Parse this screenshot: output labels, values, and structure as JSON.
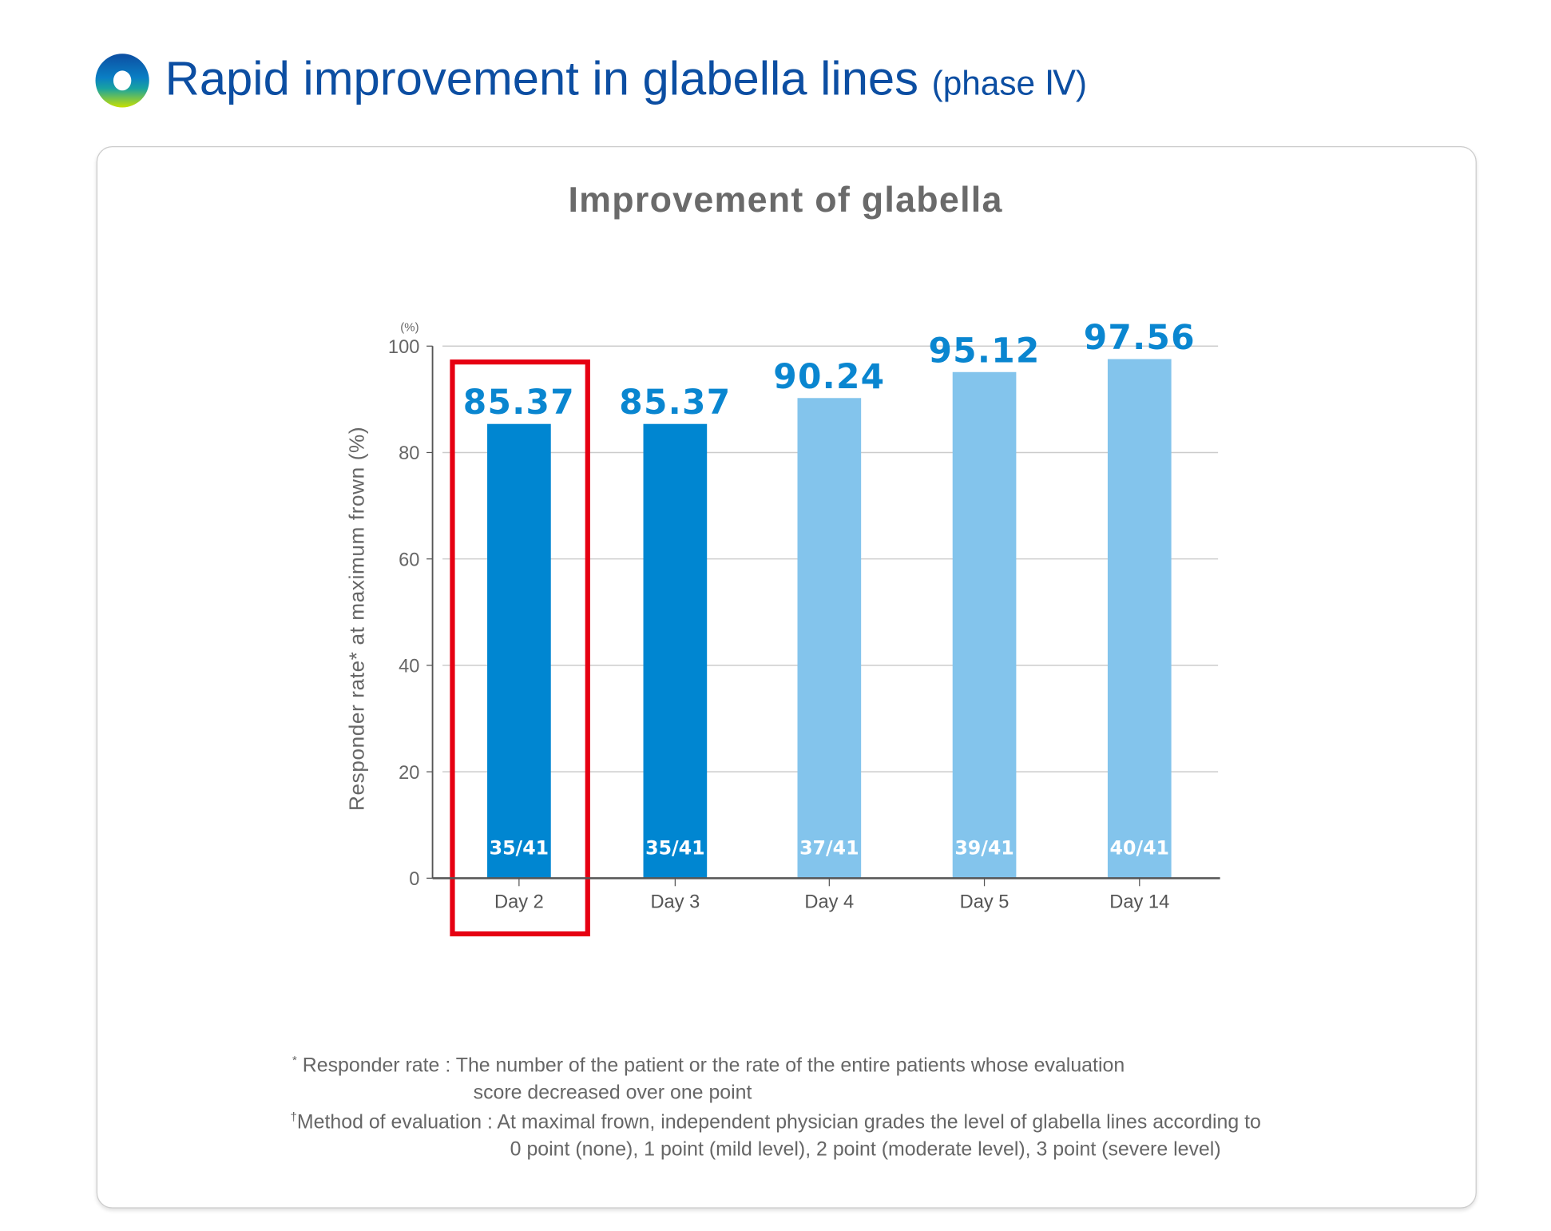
{
  "header": {
    "title": "Rapid improvement in glabella lines",
    "subtitle": "(phase Ⅳ)"
  },
  "colors": {
    "highlight_bar": "#0086d1",
    "bar": "#83c4ec",
    "value_label": "#0a86d0",
    "highlight_box": "#e60012",
    "title": "#0c4ea2"
  },
  "chart_data": {
    "type": "bar",
    "title": "Improvement of glabella",
    "ylabel": "Responder rate* at maximum frown (%)",
    "yunit": "(%)",
    "ylim": [
      0,
      100
    ],
    "yticks": [
      "0",
      "20",
      "40",
      "60",
      "80",
      "100"
    ],
    "grid": true,
    "categories": [
      "Day 2",
      "Day 3",
      "Day 4",
      "Day 5",
      "Day 14"
    ],
    "values": [
      85.37,
      85.37,
      90.24,
      95.12,
      97.56
    ],
    "value_labels": [
      "85.37",
      "85.37",
      "90.24",
      "95.12",
      "97.56"
    ],
    "counts": [
      "35/41",
      "35/41",
      "37/41",
      "39/41",
      "40/41"
    ],
    "highlighted": [
      true,
      true,
      false,
      false,
      false
    ],
    "boxed_category": "Day 2"
  },
  "footnotes": [
    {
      "mark": "*",
      "label": "Responder rate :",
      "line1": "The number of the patient or the rate of the entire patients whose evaluation",
      "line2": "score decreased over one point"
    },
    {
      "mark": "†",
      "label": "Method of evaluation :",
      "line1": "At maximal frown, independent physician grades the level of glabella lines according to",
      "line2": "0 point (none), 1 point (mild level), 2 point (moderate level), 3 point (severe level)"
    }
  ]
}
